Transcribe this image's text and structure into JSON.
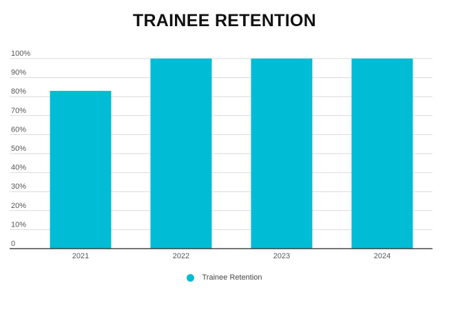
{
  "chart_data": {
    "type": "bar",
    "title": "TRAINEE RETENTION",
    "categories": [
      "2021",
      "2022",
      "2023",
      "2024"
    ],
    "series": [
      {
        "name": "Trainee Retention",
        "values": [
          83,
          100,
          100,
          100
        ],
        "color": "#00BCD4"
      }
    ],
    "ylim": [
      0,
      100
    ],
    "y_ticks": [
      0,
      10,
      20,
      30,
      40,
      50,
      60,
      70,
      80,
      90,
      100
    ],
    "y_tick_labels": [
      "0",
      "10%",
      "20%",
      "30%",
      "40%",
      "50%",
      "60%",
      "70%",
      "80%",
      "90%",
      "100%"
    ],
    "xlabel": "",
    "ylabel": "",
    "grid": true,
    "legend_position": "bottom"
  }
}
